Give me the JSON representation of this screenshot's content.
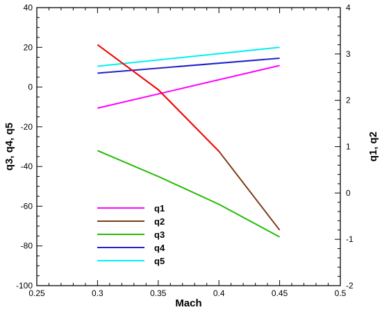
{
  "chart_data": {
    "type": "line",
    "xlabel": "Mach",
    "ylabel_left": "q3, q4, q5",
    "ylabel_right": "q1, q2",
    "xlim": [
      0.25,
      0.5
    ],
    "ylim_left": [
      -100,
      40
    ],
    "ylim_right": [
      -2,
      4
    ],
    "x_ticks": [
      "0.25",
      "0.3",
      "0.35",
      "0.4",
      "0.45",
      "0.5"
    ],
    "y_left_ticks": [
      "-100",
      "-80",
      "-60",
      "-40",
      "-20",
      "0",
      "20",
      "40"
    ],
    "y_right_ticks": [
      "-2",
      "-1",
      "0",
      "1",
      "2",
      "3",
      "4"
    ],
    "grid": false,
    "legend_position": "lower-left",
    "series": [
      {
        "name": "q1",
        "axis": "right",
        "color": "#ff00ff",
        "x": [
          0.3,
          0.45
        ],
        "y": [
          1.83,
          2.75
        ]
      },
      {
        "name": "q2",
        "axis": "right",
        "color": "#7a3b17",
        "x": [
          0.3,
          0.35,
          0.4,
          0.45
        ],
        "y": [
          3.2,
          2.23,
          0.9,
          -0.8
        ]
      },
      {
        "name": "q3",
        "axis": "left",
        "color": "#22bb00",
        "x": [
          0.3,
          0.35,
          0.4,
          0.45
        ],
        "y": [
          -32,
          -45,
          -59,
          -75.5
        ]
      },
      {
        "name": "q4",
        "axis": "left",
        "color": "#2020cc",
        "x": [
          0.3,
          0.45
        ],
        "y": [
          7,
          14.5
        ]
      },
      {
        "name": "q5",
        "axis": "left",
        "color": "#00f0f0",
        "x": [
          0.3,
          0.45
        ],
        "y": [
          10.5,
          20
        ]
      }
    ],
    "q2_overlay_color": "#ff0000",
    "q2_overlay_x_range": [
      0.3,
      0.4
    ]
  }
}
